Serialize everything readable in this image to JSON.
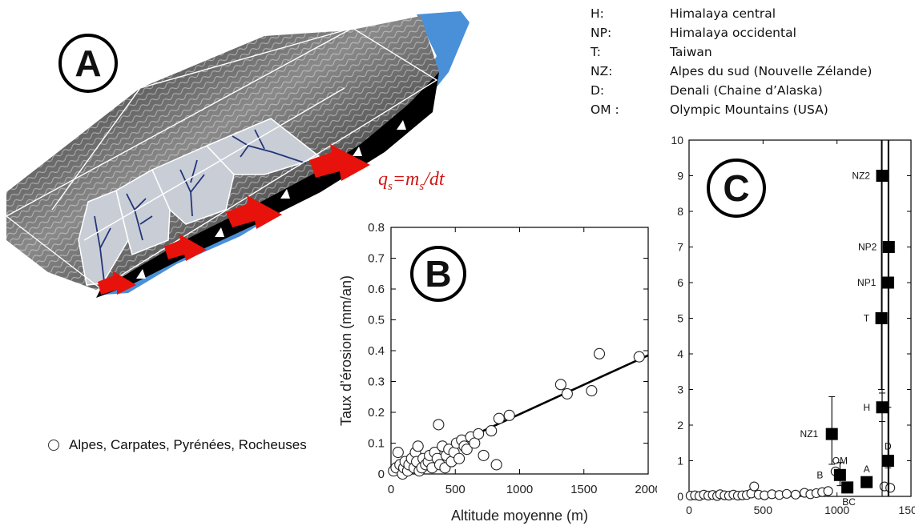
{
  "panel_labels": {
    "a": "A",
    "b": "B",
    "c": "C"
  },
  "formula": "qs=ms/dt",
  "legend": {
    "items": [
      {
        "code": "H:",
        "name": "Himalaya central"
      },
      {
        "code": "NP:",
        "name": "Himalaya occidental"
      },
      {
        "code": "T:",
        "name": "Taiwan"
      },
      {
        "code": "NZ:",
        "name": "Alpes du sud (Nouvelle Zélande)"
      },
      {
        "code": "D:",
        "name": "Denali (Chaine d’Alaska)"
      },
      {
        "code": "OM :",
        "name": "Olympic Mountains (USA)"
      }
    ],
    "open_circle_label": "Alpes, Carpates, Pyrénées, Rocheuses"
  },
  "colors": {
    "arrow": "#e8120c",
    "ocean": "#4a90d9",
    "basin_fill": "#c9ced6",
    "river": "#24357a",
    "formula": "#d01515"
  },
  "chart_data": [
    {
      "id": "B",
      "type": "scatter",
      "xlabel": "Altitude moyenne (m)",
      "ylabel": "Taux d’érosion (mm/an)",
      "xlim": [
        0,
        2000
      ],
      "ylim": [
        0,
        0.8
      ],
      "xticks": [
        0,
        500,
        1000,
        1500,
        2000
      ],
      "yticks": [
        0,
        0.1,
        0.2,
        0.3,
        0.4,
        0.5,
        0.6,
        0.7,
        0.8
      ],
      "ytick_labels": [
        "0",
        "0.1",
        "0.2",
        "0.3",
        "0.4",
        "0.5",
        "0.6",
        "0.7",
        "0.8"
      ],
      "points": [
        [
          20,
          0.01
        ],
        [
          40,
          0.02
        ],
        [
          55,
          0.07
        ],
        [
          70,
          0.03
        ],
        [
          90,
          0.0
        ],
        [
          100,
          0.02
        ],
        [
          110,
          0.04
        ],
        [
          130,
          0.01
        ],
        [
          140,
          0.03
        ],
        [
          160,
          0.05
        ],
        [
          180,
          0.02
        ],
        [
          190,
          0.07
        ],
        [
          200,
          0.04
        ],
        [
          210,
          0.09
        ],
        [
          220,
          0.01
        ],
        [
          240,
          0.02
        ],
        [
          250,
          0.05
        ],
        [
          270,
          0.03
        ],
        [
          290,
          0.04
        ],
        [
          300,
          0.06
        ],
        [
          320,
          0.02
        ],
        [
          340,
          0.07
        ],
        [
          360,
          0.05
        ],
        [
          370,
          0.16
        ],
        [
          380,
          0.03
        ],
        [
          400,
          0.09
        ],
        [
          420,
          0.02
        ],
        [
          430,
          0.06
        ],
        [
          450,
          0.08
        ],
        [
          470,
          0.04
        ],
        [
          490,
          0.07
        ],
        [
          510,
          0.1
        ],
        [
          530,
          0.05
        ],
        [
          550,
          0.11
        ],
        [
          570,
          0.09
        ],
        [
          590,
          0.08
        ],
        [
          620,
          0.12
        ],
        [
          650,
          0.1
        ],
        [
          680,
          0.13
        ],
        [
          720,
          0.06
        ],
        [
          780,
          0.14
        ],
        [
          820,
          0.03
        ],
        [
          840,
          0.18
        ],
        [
          920,
          0.19
        ],
        [
          1320,
          0.29
        ],
        [
          1370,
          0.26
        ],
        [
          1560,
          0.27
        ],
        [
          1620,
          0.39
        ],
        [
          1930,
          0.38
        ]
      ],
      "trendline": [
        [
          430,
          0.085
        ],
        [
          2000,
          0.385
        ]
      ]
    },
    {
      "id": "C",
      "type": "scatter",
      "xlabel": "Altitude moyenne (m)",
      "ylabel": "",
      "xlim": [
        0,
        1500
      ],
      "ylim": [
        0,
        10
      ],
      "xticks": [
        0,
        500,
        1000,
        1500
      ],
      "yticks": [
        0,
        1,
        2,
        3,
        4,
        5,
        6,
        7,
        8,
        9,
        10
      ],
      "open_points": [
        [
          10,
          0.02
        ],
        [
          40,
          0.03
        ],
        [
          70,
          0.01
        ],
        [
          100,
          0.05
        ],
        [
          130,
          0.02
        ],
        [
          160,
          0.04
        ],
        [
          190,
          0.01
        ],
        [
          210,
          0.06
        ],
        [
          240,
          0.03
        ],
        [
          270,
          0.02
        ],
        [
          300,
          0.05
        ],
        [
          330,
          0.02
        ],
        [
          360,
          0.03
        ],
        [
          390,
          0.04
        ],
        [
          420,
          0.08
        ],
        [
          440,
          0.28
        ],
        [
          470,
          0.05
        ],
        [
          510,
          0.03
        ],
        [
          560,
          0.06
        ],
        [
          610,
          0.04
        ],
        [
          660,
          0.07
        ],
        [
          720,
          0.05
        ],
        [
          780,
          0.1
        ],
        [
          820,
          0.06
        ],
        [
          860,
          0.09
        ],
        [
          900,
          0.12
        ],
        [
          940,
          0.15
        ],
        [
          990,
          0.7
        ],
        [
          1320,
          0.28
        ],
        [
          1360,
          0.24
        ]
      ],
      "filled_points": [
        {
          "label": "NZ2",
          "x": 1305,
          "y": 9.0,
          "err_lo": 0,
          "err_hi": 10
        },
        {
          "label": "NP2",
          "x": 1350,
          "y": 7.0,
          "err_lo": 0,
          "err_hi": 10
        },
        {
          "label": "NP1",
          "x": 1345,
          "y": 6.0,
          "err_lo": 0,
          "err_hi": 10
        },
        {
          "label": "T",
          "x": 1300,
          "y": 5.0,
          "err_lo": 3.0,
          "err_hi": 10
        },
        {
          "label": "H",
          "x": 1305,
          "y": 2.5,
          "err_lo": 2.1,
          "err_hi": 2.9
        },
        {
          "label": "NZ1",
          "x": 965,
          "y": 1.75,
          "err_lo": 0.9,
          "err_hi": 2.8
        },
        {
          "label": "D",
          "x": 1345,
          "y": 1.0,
          "err_lo": 0.8,
          "err_hi": 2.5
        },
        {
          "label": "OM",
          "x": 1020,
          "y": 0.6,
          "err_lo": 0.3,
          "err_hi": 0.95
        },
        {
          "label": "B",
          "x": 1020,
          "y": 0.6,
          "err_lo": 0.6,
          "err_hi": 0.6
        },
        {
          "label": "A",
          "x": 1200,
          "y": 0.4,
          "err_lo": 0.4,
          "err_hi": 0.4
        },
        {
          "label": "BC",
          "x": 1070,
          "y": 0.25,
          "err_lo": 0.25,
          "err_hi": 0.25
        }
      ]
    }
  ]
}
